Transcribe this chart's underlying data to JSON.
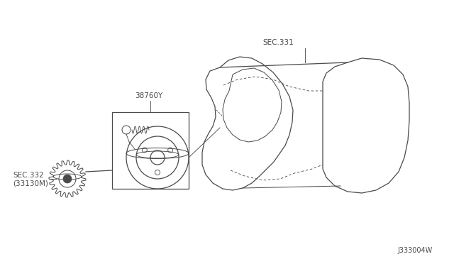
{
  "background_color": "#ffffff",
  "line_color": "#4a4a4a",
  "label_color": "#4a4a4a",
  "diagram_id": "J333004W",
  "labels": {
    "sec331": "SEC.331",
    "part38760Y": "38760Y",
    "sec332": "SEC.332\n(33130M)"
  },
  "fig_width": 6.4,
  "fig_height": 3.72,
  "dpi": 100
}
